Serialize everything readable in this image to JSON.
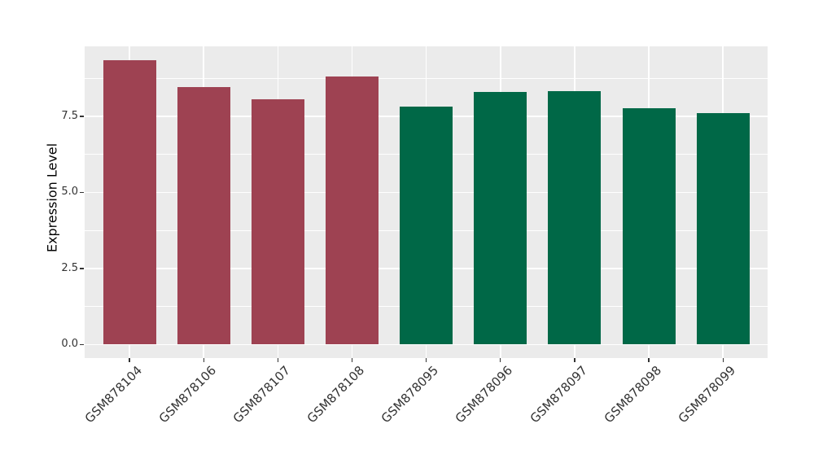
{
  "page": {
    "background": "#FFFFFF"
  },
  "chart_data": {
    "type": "bar",
    "title": "",
    "xlabel": "",
    "ylabel": "Expression Level",
    "categories": [
      "GSM878104",
      "GSM878106",
      "GSM878107",
      "GSM878108",
      "GSM878095",
      "GSM878096",
      "GSM878097",
      "GSM878098",
      "GSM878099"
    ],
    "values": [
      9.35,
      8.47,
      8.05,
      8.81,
      7.82,
      8.3,
      8.34,
      7.78,
      7.61
    ],
    "bar_colors": [
      "#9E4252",
      "#9E4252",
      "#9E4252",
      "#9E4252",
      "#006847",
      "#006847",
      "#006847",
      "#006847",
      "#006847"
    ],
    "ylim": [
      -0.45,
      9.8
    ],
    "yticks": [
      0,
      2.5,
      5,
      7.5
    ],
    "ytick_labels": [
      "0.0",
      "2.5",
      "5.0",
      "7.5"
    ],
    "yticks_minor": [
      1.25,
      3.75,
      6.25,
      8.75
    ],
    "grid": true,
    "legend": "none",
    "style": {
      "panel_background": "#EBEBEB",
      "grid_color": "#FFFFFF",
      "tick_mark_color": "#333333",
      "tick_label_color": "#333333",
      "axis_title_color": "#000000"
    }
  }
}
